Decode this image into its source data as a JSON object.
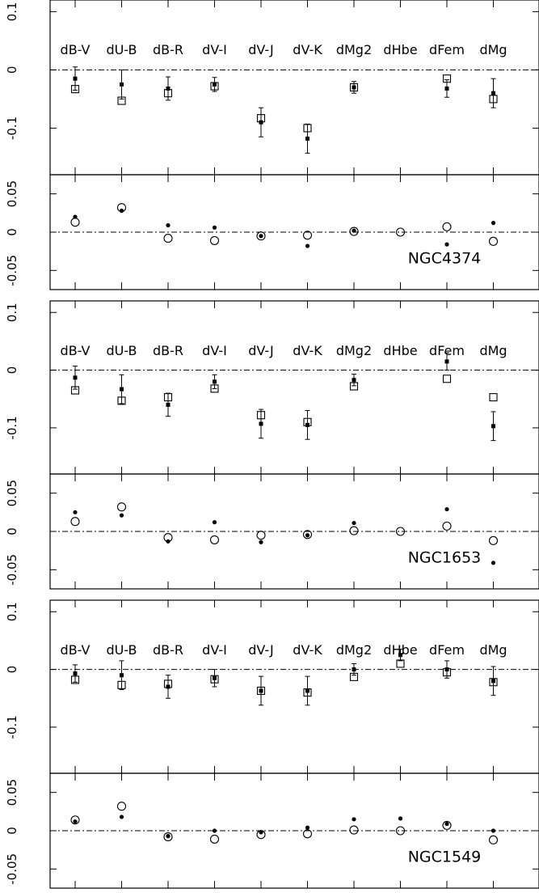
{
  "chart_data": {
    "type": "scatter",
    "categories": [
      "dB-V",
      "dU-B",
      "dB-R",
      "dV-I",
      "dV-J",
      "dV-K",
      "dMg2",
      "dHbe",
      "dFem",
      "dMg"
    ],
    "colors": {
      "axis": "#000000",
      "marker": "#000000",
      "background": "#ffffff"
    },
    "markers": {
      "upper_filled": "filled-square",
      "upper_open": "open-square",
      "lower_filled": "filled-circle",
      "lower_open": "open-circle"
    },
    "grid": false,
    "legend": "none",
    "galaxies": [
      {
        "name": "",
        "upper": {
          "ylim": [
            -0.18,
            0.12
          ],
          "yticks": [
            "0.1",
            "0",
            "-0.1"
          ],
          "filled": [
            -0.015,
            -0.025,
            -0.032,
            -0.025,
            -0.09,
            -0.118,
            -0.03,
            null,
            -0.032,
            -0.04
          ],
          "errors": [
            0.02,
            0.025,
            0.02,
            0.012,
            0.025,
            0.025,
            0.01,
            null,
            0.015,
            0.025
          ],
          "open": [
            -0.033,
            -0.053,
            -0.04,
            -0.028,
            -0.083,
            -0.1,
            -0.03,
            null,
            -0.015,
            -0.05
          ]
        },
        "lower": {
          "ylim": [
            -0.075,
            0.075
          ],
          "yticks": [
            "0.05",
            "0",
            "-0.05"
          ],
          "filled": [
            0.02,
            0.028,
            0.009,
            0.006,
            -0.005,
            -0.018,
            0.002,
            null,
            -0.016,
            0.012
          ],
          "open": [
            0.013,
            0.032,
            -0.008,
            -0.011,
            -0.005,
            -0.004,
            0.001,
            0.0,
            0.007,
            -0.012
          ]
        }
      },
      {
        "name": "NGC4374",
        "upper": {
          "ylim": [
            -0.18,
            0.12
          ],
          "yticks": [
            "0.1",
            "0",
            "-0.1"
          ],
          "filled": [
            -0.013,
            -0.033,
            -0.06,
            -0.02,
            -0.093,
            -0.095,
            -0.017,
            null,
            0.015,
            -0.097
          ],
          "errors": [
            0.02,
            0.025,
            0.02,
            0.012,
            0.025,
            0.025,
            0.01,
            null,
            0.015,
            0.025
          ],
          "open": [
            -0.035,
            -0.053,
            -0.047,
            -0.032,
            -0.078,
            -0.09,
            -0.028,
            null,
            -0.015,
            -0.047
          ]
        },
        "lower": {
          "ylim": [
            -0.075,
            0.075
          ],
          "yticks": [
            "0.05",
            "0",
            "-0.05"
          ],
          "filled": [
            0.025,
            0.021,
            -0.013,
            0.012,
            -0.014,
            -0.005,
            0.011,
            null,
            0.029,
            -0.041
          ],
          "open": [
            0.013,
            0.032,
            -0.008,
            -0.011,
            -0.005,
            -0.004,
            0.001,
            0.0,
            0.007,
            -0.012
          ]
        }
      },
      {
        "name": "NGC1653",
        "upper": {
          "ylim": [
            -0.18,
            0.12
          ],
          "yticks": [
            "0.1",
            "0",
            "-0.1"
          ],
          "filled": [
            -0.007,
            -0.01,
            -0.03,
            -0.015,
            -0.037,
            -0.037,
            0.0,
            0.025,
            0.0,
            -0.02
          ],
          "errors": [
            0.015,
            0.025,
            0.02,
            0.015,
            0.025,
            0.025,
            0.01,
            0.01,
            0.015,
            0.025
          ],
          "open": [
            -0.018,
            -0.027,
            -0.025,
            -0.017,
            -0.037,
            -0.04,
            -0.013,
            0.01,
            -0.005,
            -0.022
          ]
        },
        "lower": {
          "ylim": [
            -0.075,
            0.075
          ],
          "yticks": [
            "0.05",
            "0",
            "-0.05"
          ],
          "filled": [
            0.012,
            0.018,
            -0.007,
            0.0,
            -0.002,
            0.004,
            0.015,
            0.016,
            0.009,
            0.0
          ],
          "open": [
            0.014,
            0.032,
            -0.008,
            -0.011,
            -0.005,
            -0.004,
            0.001,
            0.0,
            0.007,
            -0.012
          ]
        }
      },
      {
        "name": "NGC1549",
        "upper": null,
        "lower": null
      }
    ]
  }
}
